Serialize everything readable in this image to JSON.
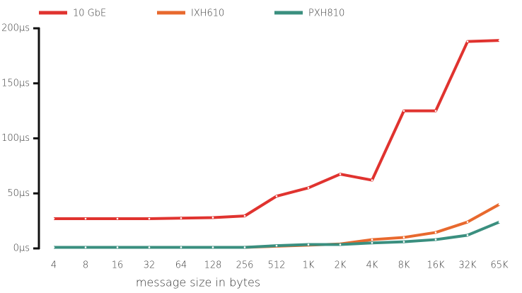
{
  "chart_data": {
    "type": "line",
    "x_label": "message size in bytes",
    "categories": [
      "4",
      "8",
      "16",
      "32",
      "64",
      "128",
      "256",
      "512",
      "1K",
      "2K",
      "4K",
      "8K",
      "16K",
      "32K",
      "65K"
    ],
    "series": [
      {
        "name": "10 GbE",
        "color": "#e0332f",
        "values": [
          27,
          27,
          27,
          27,
          27.5,
          28,
          29.5,
          47.5,
          55,
          67.5,
          62,
          125,
          125,
          188,
          189
        ]
      },
      {
        "name": "IXH610",
        "color": "#e8692e",
        "values": [
          1,
          1,
          1,
          1,
          1,
          1,
          1,
          2,
          3,
          4,
          8,
          10,
          14.5,
          24,
          40
        ]
      },
      {
        "name": "PXH810",
        "color": "#3a8f7f",
        "values": [
          1,
          1,
          1,
          1,
          1,
          1,
          1,
          2.5,
          3.5,
          3.5,
          5,
          6,
          8,
          12,
          24
        ]
      }
    ],
    "ylim": [
      0,
      200
    ],
    "yticks": [
      {
        "value": 0,
        "label": "0µs"
      },
      {
        "value": 50,
        "label": "50µs"
      },
      {
        "value": 100,
        "label": "100µs"
      },
      {
        "value": 150,
        "label": "150µs"
      },
      {
        "value": 200,
        "label": "200µs"
      }
    ],
    "grid": false
  }
}
